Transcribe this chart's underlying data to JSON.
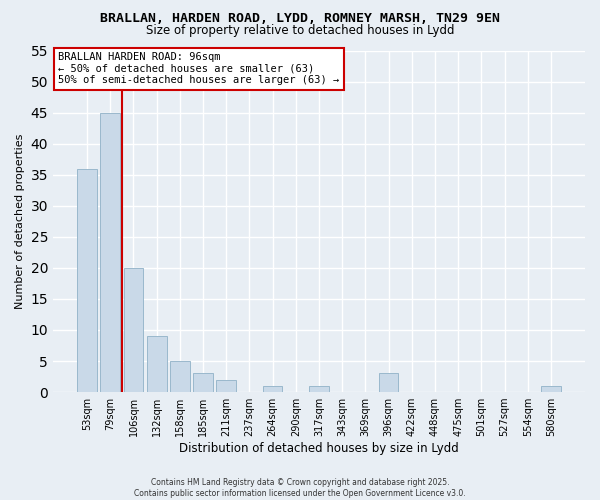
{
  "title_line1": "BRALLAN, HARDEN ROAD, LYDD, ROMNEY MARSH, TN29 9EN",
  "title_line2": "Size of property relative to detached houses in Lydd",
  "xlabel": "Distribution of detached houses by size in Lydd",
  "ylabel": "Number of detached properties",
  "bar_labels": [
    "53sqm",
    "79sqm",
    "106sqm",
    "132sqm",
    "158sqm",
    "185sqm",
    "211sqm",
    "237sqm",
    "264sqm",
    "290sqm",
    "317sqm",
    "343sqm",
    "369sqm",
    "396sqm",
    "422sqm",
    "448sqm",
    "475sqm",
    "501sqm",
    "527sqm",
    "554sqm",
    "580sqm"
  ],
  "bar_values": [
    36,
    45,
    20,
    9,
    5,
    3,
    2,
    0,
    1,
    0,
    1,
    0,
    0,
    3,
    0,
    0,
    0,
    0,
    0,
    0,
    1
  ],
  "bar_color": "#c9d9e8",
  "bar_edgecolor": "#9ab8cc",
  "vline_x": 1.5,
  "vline_color": "#cc0000",
  "ylim": [
    0,
    55
  ],
  "yticks": [
    0,
    5,
    10,
    15,
    20,
    25,
    30,
    35,
    40,
    45,
    50,
    55
  ],
  "annotation_title": "BRALLAN HARDEN ROAD: 96sqm",
  "annotation_line1": "← 50% of detached houses are smaller (63)",
  "annotation_line2": "50% of semi-detached houses are larger (63) →",
  "annotation_box_color": "#ffffff",
  "annotation_box_edgecolor": "#cc0000",
  "footer_line1": "Contains HM Land Registry data © Crown copyright and database right 2025.",
  "footer_line2": "Contains public sector information licensed under the Open Government Licence v3.0.",
  "background_color": "#e8eef4",
  "grid_color": "#ffffff"
}
